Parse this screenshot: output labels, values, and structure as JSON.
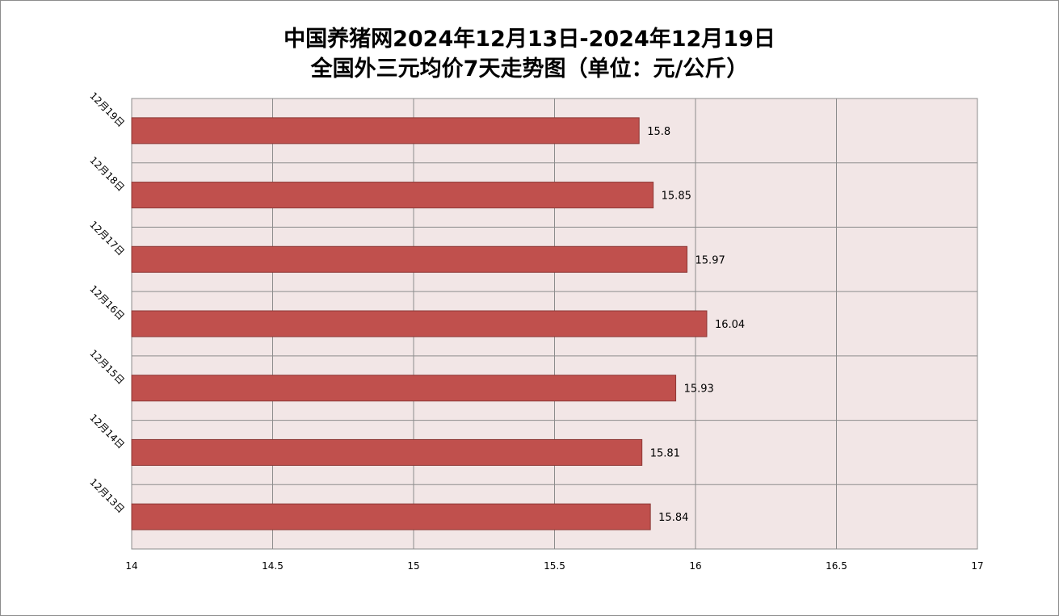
{
  "chart_data": {
    "type": "bar",
    "orientation": "horizontal",
    "title": "中国养猪网2024年12月13日-2024年12月19日",
    "subtitle": "全国外三元均价7天走势图（单位：元/公斤）",
    "categories": [
      "12月19日",
      "12月18日",
      "12月17日",
      "12月16日",
      "12月15日",
      "12月14日",
      "12月13日"
    ],
    "values": [
      15.8,
      15.85,
      15.97,
      16.04,
      15.93,
      15.81,
      15.84
    ],
    "data_labels": [
      "15.8",
      "15.85",
      "15.97",
      "16.04",
      "15.93",
      "15.81",
      "15.84"
    ],
    "xlim": [
      14,
      17
    ],
    "x_ticks": [
      14,
      14.5,
      15,
      15.5,
      16,
      16.5,
      17
    ],
    "x_tick_labels": [
      "14",
      "14.5",
      "15",
      "15.5",
      "16",
      "16.5",
      "17"
    ],
    "grid": true,
    "legend": "none",
    "colors": {
      "bar_fill": "#c0504d",
      "bar_stroke": "#8c3836",
      "plot_background": "#f2e6e6",
      "grid": "#8c8c8c"
    }
  }
}
